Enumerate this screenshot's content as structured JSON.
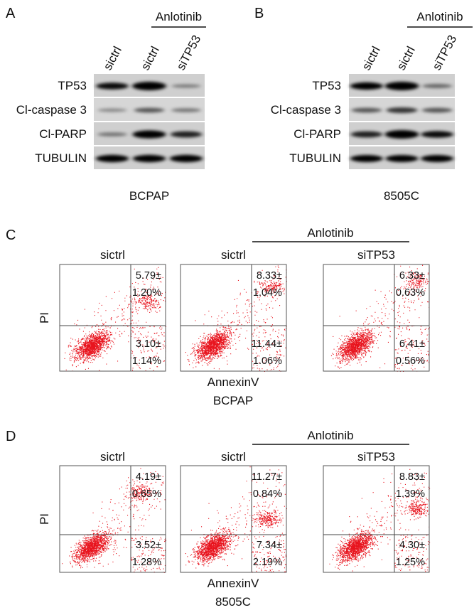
{
  "panels": [
    {
      "letter": "A",
      "treatment": "Anlotinib",
      "lanes": [
        "sictrl",
        "sictrl",
        "siTP53"
      ],
      "rows": [
        "TP53",
        "Cl-caspase 3",
        "Cl-PARP",
        "TUBULIN"
      ],
      "cell_line": "BCPAP"
    },
    {
      "letter": "B",
      "treatment": "Anlotinib",
      "lanes": [
        "sictrl",
        "sictrl",
        "siTP53"
      ],
      "rows": [
        "TP53",
        "Cl-caspase 3",
        "Cl-PARP",
        "TUBULIN"
      ],
      "cell_line": "8505C"
    },
    {
      "letter": "C",
      "treatment": "Anlotinib",
      "y_label": "PI",
      "x_label": "AnnexinV",
      "cell_line": "BCPAP",
      "plots": [
        {
          "title": "sictrl",
          "upper": [
            "5.79±",
            "1.20%"
          ],
          "lower": [
            "3.10±",
            "1.14%"
          ]
        },
        {
          "title": "sictrl",
          "upper": [
            "8.33±",
            "1.04%"
          ],
          "lower": [
            "11.44±",
            "1.06%"
          ]
        },
        {
          "title": "siTP53",
          "upper": [
            "6.33±",
            "0.63%"
          ],
          "lower": [
            "6.41±",
            "0.56%"
          ]
        }
      ]
    },
    {
      "letter": "D",
      "treatment": "Anlotinib",
      "y_label": "PI",
      "x_label": "AnnexinV",
      "cell_line": "8505C",
      "plots": [
        {
          "title": "sictrl",
          "upper": [
            "4.19±",
            "0.65%"
          ],
          "lower": [
            "3.52±",
            "1.28%"
          ]
        },
        {
          "title": "sictrl",
          "upper": [
            "11.27±",
            "0.84%"
          ],
          "lower": [
            "7.34±",
            "2.19%"
          ]
        },
        {
          "title": "siTP53",
          "upper": [
            "8.83±",
            "1.39%"
          ],
          "lower": [
            "4.30±",
            "1.25%"
          ]
        }
      ]
    }
  ]
}
